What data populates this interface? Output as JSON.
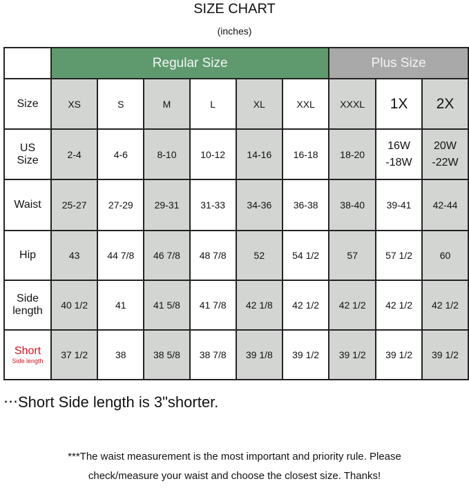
{
  "title": "SIZE CHART",
  "unit": "(inches)",
  "groups": {
    "regular": "Regular Size",
    "plus": "Plus Size"
  },
  "colors": {
    "regular_header": "#5f9a6f",
    "plus_header": "#a9a9a9",
    "shaded_cell": "#d2d5d2",
    "short_label": "#d0141a"
  },
  "row_labels": {
    "size": "Size",
    "us_size": [
      "US",
      "Size"
    ],
    "waist": "Waist",
    "hip": "Hip",
    "side_length": [
      "Side",
      "length"
    ],
    "short": "Short",
    "short_sub": "Side length"
  },
  "columns": [
    {
      "size": "XS",
      "us": "2-4",
      "waist": "25-27",
      "hip": "43",
      "side": "40 1/2",
      "short": "37 1/2",
      "shaded": true
    },
    {
      "size": "S",
      "us": "4-6",
      "waist": "27-29",
      "hip": "44 7/8",
      "side": "41",
      "short": "38",
      "shaded": false
    },
    {
      "size": "M",
      "us": "8-10",
      "waist": "29-31",
      "hip": "46 7/8",
      "side": "41 5/8",
      "short": "38 5/8",
      "shaded": true
    },
    {
      "size": "L",
      "us": "10-12",
      "waist": "31-33",
      "hip": "48 7/8",
      "side": "41 7/8",
      "short": "38 7/8",
      "shaded": false
    },
    {
      "size": "XL",
      "us": "14-16",
      "waist": "34-36",
      "hip": "52",
      "side": "42 1/8",
      "short": "39 1/8",
      "shaded": true
    },
    {
      "size": "XXL",
      "us": "16-18",
      "waist": "36-38",
      "hip": "54 1/2",
      "side": "42 1/2",
      "short": "39 1/2",
      "shaded": false
    },
    {
      "size": "XXXL",
      "us": "18-20",
      "waist": "38-40",
      "hip": "57",
      "side": "42 1/2",
      "short": "39 1/2",
      "shaded": true
    },
    {
      "size": "1X",
      "us": "16W -18W",
      "waist": "39-41",
      "hip": "57 1/2",
      "side": "42 1/2",
      "short": "39 1/2",
      "shaded": false
    },
    {
      "size": "2X",
      "us": "20W -22W",
      "waist": "42-44",
      "hip": "60",
      "side": "42 1/2",
      "short": "39 1/2",
      "shaded": true
    }
  ],
  "notes": {
    "short_note": "‧‧‧Short Side length is  3\"shorter.",
    "waist_note_1": "***The waist measurement is the most important and priority rule. Please",
    "waist_note_2": "check/measure your waist and choose the closest size. Thanks!"
  }
}
